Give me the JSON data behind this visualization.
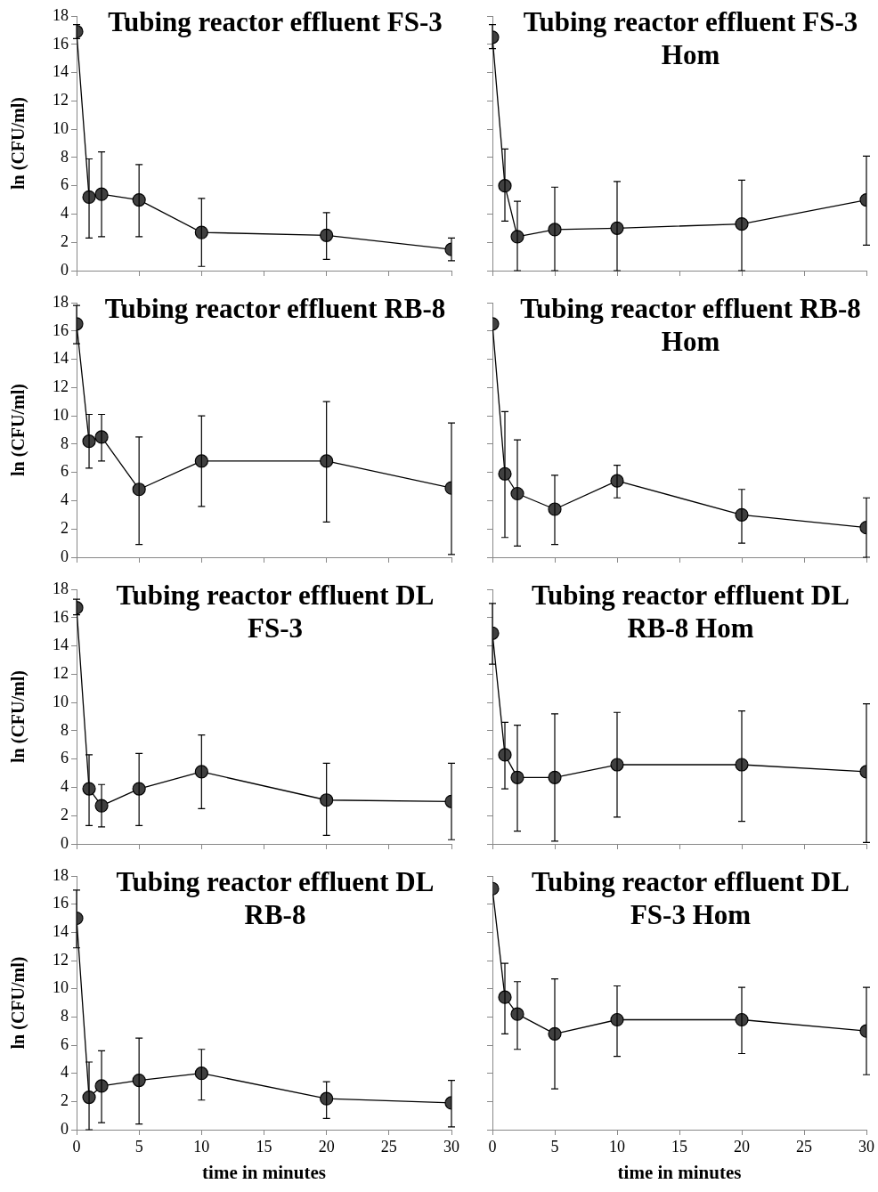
{
  "chart_data": [
    {
      "type": "line",
      "title": "Tubing reactor effluent FS-3",
      "ylabel": "ln (CFU/ml)",
      "x": [
        0,
        1,
        2,
        5,
        10,
        20,
        30
      ],
      "xlim": [
        0,
        30
      ],
      "xticks": [
        0,
        5,
        10,
        15,
        20,
        25,
        30
      ],
      "ylim": [
        0,
        18
      ],
      "yticks": [
        0,
        2,
        4,
        6,
        8,
        10,
        12,
        14,
        16,
        18
      ],
      "tick_labels": "y",
      "marker": "circle",
      "color": "#404040",
      "values": [
        16.9,
        5.2,
        5.4,
        5.0,
        2.7,
        2.5,
        1.5
      ],
      "errors": [
        [
          16.4,
          17.4
        ],
        [
          2.3,
          7.9
        ],
        [
          2.4,
          8.4
        ],
        [
          2.4,
          7.5
        ],
        [
          0.3,
          5.1
        ],
        [
          0.8,
          4.1
        ],
        [
          0.7,
          2.3
        ]
      ]
    },
    {
      "type": "line",
      "title": "Tubing reactor effluent FS-3 Hom",
      "x": [
        0,
        1,
        2,
        5,
        10,
        20,
        30
      ],
      "xlim": [
        0,
        30
      ],
      "xticks": [
        0,
        5,
        10,
        15,
        20,
        25,
        30
      ],
      "ylim": [
        0,
        18
      ],
      "yticks": [
        0,
        2,
        4,
        6,
        8,
        10,
        12,
        14,
        16,
        18
      ],
      "tick_labels": false,
      "marker": "circle",
      "color": "#404040",
      "values": [
        16.5,
        6.0,
        2.4,
        2.9,
        3.0,
        3.3,
        5.0
      ],
      "errors": [
        [
          15.7,
          17.4
        ],
        [
          3.5,
          8.6
        ],
        [
          0,
          4.9
        ],
        [
          0,
          5.9
        ],
        [
          0,
          6.3
        ],
        [
          0,
          6.4
        ],
        [
          1.8,
          8.1
        ]
      ]
    },
    {
      "type": "line",
      "title": "Tubing reactor effluent RB-8",
      "ylabel": "ln (CFU/ml)",
      "x": [
        0,
        1,
        2,
        5,
        10,
        20,
        30
      ],
      "xlim": [
        0,
        30
      ],
      "xticks": [
        0,
        5,
        10,
        15,
        20,
        25,
        30
      ],
      "ylim": [
        0,
        18
      ],
      "yticks": [
        0,
        2,
        4,
        6,
        8,
        10,
        12,
        14,
        16,
        18
      ],
      "tick_labels": "y",
      "marker": "circle",
      "color": "#404040",
      "values": [
        16.5,
        8.2,
        8.5,
        4.8,
        6.8,
        6.8,
        4.9
      ],
      "errors": [
        [
          15.1,
          17.8
        ],
        [
          6.3,
          10.1
        ],
        [
          6.8,
          10.1
        ],
        [
          0.9,
          8.5
        ],
        [
          3.6,
          10.0
        ],
        [
          2.5,
          11.0
        ],
        [
          0.2,
          9.5
        ]
      ]
    },
    {
      "type": "line",
      "title": "Tubing reactor effluent RB-8 Hom",
      "x": [
        0,
        1,
        2,
        5,
        10,
        20,
        30
      ],
      "xlim": [
        0,
        30
      ],
      "xticks": [
        0,
        5,
        10,
        15,
        20,
        25,
        30
      ],
      "ylim": [
        0,
        18
      ],
      "yticks": [
        0,
        2,
        4,
        6,
        8,
        10,
        12,
        14,
        16,
        18
      ],
      "tick_labels": false,
      "marker": "circle",
      "color": "#404040",
      "values": [
        16.5,
        5.9,
        4.5,
        3.4,
        5.4,
        3.0,
        2.1
      ],
      "errors": [
        null,
        [
          1.4,
          10.3
        ],
        [
          0.8,
          8.3
        ],
        [
          0.9,
          5.8
        ],
        [
          4.2,
          6.5
        ],
        [
          1.0,
          4.8
        ],
        [
          0,
          4.2
        ]
      ]
    },
    {
      "type": "line",
      "title": "Tubing reactor effluent DL FS-3",
      "ylabel": "ln (CFU/ml)",
      "x": [
        0,
        1,
        2,
        5,
        10,
        20,
        30
      ],
      "xlim": [
        0,
        30
      ],
      "xticks": [
        0,
        5,
        10,
        15,
        20,
        25,
        30
      ],
      "ylim": [
        0,
        18
      ],
      "yticks": [
        0,
        2,
        4,
        6,
        8,
        10,
        12,
        14,
        16,
        18
      ],
      "tick_labels": "y",
      "marker": "circle",
      "color": "#404040",
      "values": [
        16.7,
        3.9,
        2.7,
        3.9,
        5.1,
        3.1,
        3.0
      ],
      "errors": [
        [
          16.2,
          17.3
        ],
        [
          1.3,
          6.3
        ],
        [
          1.2,
          4.2
        ],
        [
          1.3,
          6.4
        ],
        [
          2.5,
          7.7
        ],
        [
          0.6,
          5.7
        ],
        [
          0.3,
          5.7
        ]
      ]
    },
    {
      "type": "line",
      "title": "Tubing reactor effluent DL RB-8 Hom",
      "x": [
        0,
        1,
        2,
        5,
        10,
        20,
        30
      ],
      "xlim": [
        0,
        30
      ],
      "xticks": [
        0,
        5,
        10,
        15,
        20,
        25,
        30
      ],
      "ylim": [
        0,
        18
      ],
      "yticks": [
        0,
        2,
        4,
        6,
        8,
        10,
        12,
        14,
        16,
        18
      ],
      "tick_labels": false,
      "marker": "circle",
      "color": "#404040",
      "values": [
        14.9,
        6.3,
        4.7,
        4.7,
        5.6,
        5.6,
        5.1
      ],
      "errors": [
        [
          12.7,
          17.0
        ],
        [
          3.9,
          8.6
        ],
        [
          0.9,
          8.4
        ],
        [
          0.2,
          9.2
        ],
        [
          1.9,
          9.3
        ],
        [
          1.6,
          9.4
        ],
        [
          0.1,
          9.9
        ]
      ]
    },
    {
      "type": "line",
      "title": "Tubing reactor effluent DL RB-8",
      "ylabel": "ln (CFU/ml)",
      "xlabel": "time in minutes",
      "x": [
        0,
        1,
        2,
        5,
        10,
        20,
        30
      ],
      "xlim": [
        0,
        30
      ],
      "xticks": [
        0,
        5,
        10,
        15,
        20,
        25,
        30
      ],
      "ylim": [
        0,
        18
      ],
      "yticks": [
        0,
        2,
        4,
        6,
        8,
        10,
        12,
        14,
        16,
        18
      ],
      "marker": "circle",
      "color": "#404040",
      "values": [
        15.0,
        2.3,
        3.1,
        3.5,
        4.0,
        2.2,
        1.9
      ],
      "errors": [
        [
          12.9,
          17.0
        ],
        [
          0,
          4.8
        ],
        [
          0.5,
          5.6
        ],
        [
          0.4,
          6.5
        ],
        [
          2.1,
          5.7
        ],
        [
          0.8,
          3.4
        ],
        [
          0.2,
          3.5
        ]
      ]
    },
    {
      "type": "line",
      "title": "Tubing reactor effluent DL FS-3 Hom",
      "xlabel": "time in minutes",
      "x": [
        0,
        1,
        2,
        5,
        10,
        20,
        30
      ],
      "xlim": [
        0,
        30
      ],
      "xticks": [
        0,
        5,
        10,
        15,
        20,
        25,
        30
      ],
      "ylim": [
        0,
        18
      ],
      "yticks": [
        0,
        2,
        4,
        6,
        8,
        10,
        12,
        14,
        16,
        18
      ],
      "tick_labels": "x",
      "marker": "circle",
      "color": "#404040",
      "values": [
        17.1,
        9.4,
        8.2,
        6.8,
        7.8,
        7.8,
        7.0
      ],
      "errors": [
        null,
        [
          6.8,
          11.8
        ],
        [
          5.7,
          10.5
        ],
        [
          2.9,
          10.7
        ],
        [
          5.2,
          10.2
        ],
        [
          5.4,
          10.1
        ],
        [
          3.9,
          10.1
        ]
      ]
    }
  ]
}
